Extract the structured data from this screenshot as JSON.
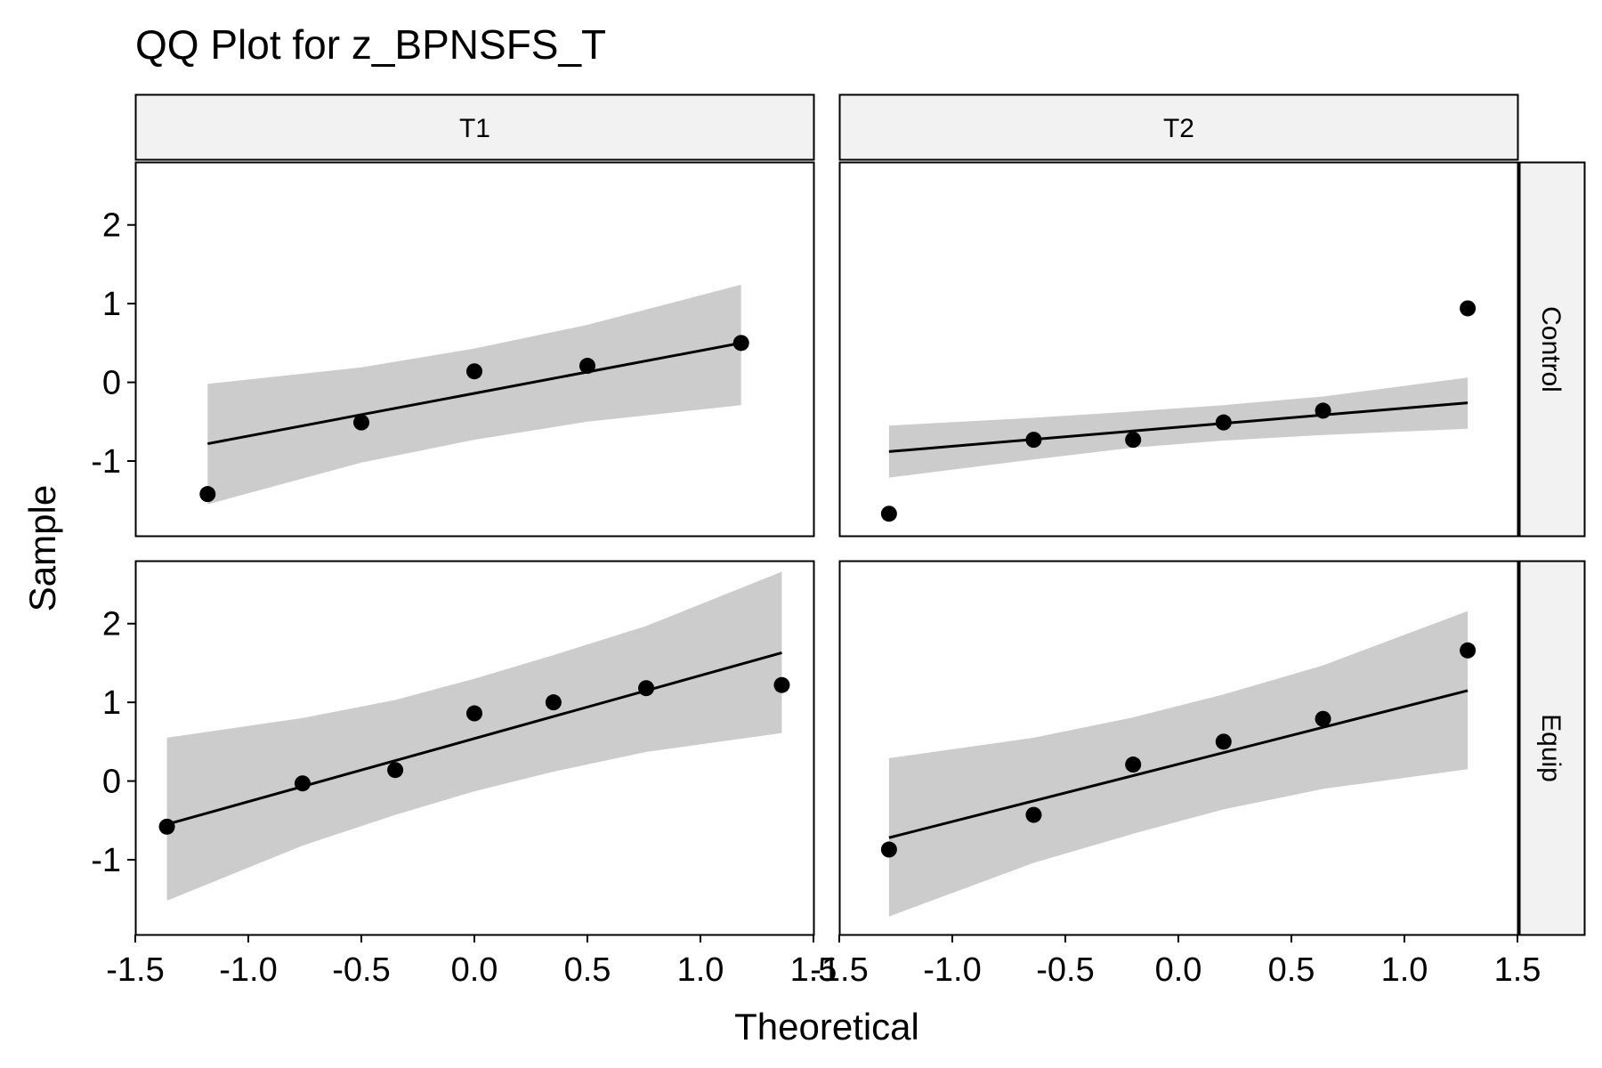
{
  "chart_data": {
    "type": "scatter",
    "title": "QQ Plot for z_BPNSFS_T",
    "xlabel": "Theoretical",
    "ylabel": "Sample",
    "xlim": [
      -1.5,
      1.5
    ],
    "ylim": [
      -1.95,
      2.8
    ],
    "x_ticks": [
      -1.5,
      -1.0,
      -0.5,
      0.0,
      0.5,
      1.0,
      1.5
    ],
    "x_tick_labels": [
      "-1.5",
      "-1.0",
      "-0.5",
      "0.0",
      "0.5",
      "1.0",
      "1.5"
    ],
    "y_ticks": [
      -1,
      0,
      1,
      2
    ],
    "y_tick_labels": [
      "-1",
      "0",
      "1",
      "2"
    ],
    "col_facets": [
      "T1",
      "T2"
    ],
    "row_facets": [
      "Control",
      "Equip"
    ],
    "colors": {
      "point": "#000000",
      "line": "#000000",
      "band": "#cccccc",
      "strip_fill": "#f2f2f2",
      "border": "#000000"
    },
    "panels": [
      {
        "row": "Control",
        "col": "T1",
        "points": [
          [
            -1.18,
            -1.42
          ],
          [
            -0.5,
            -0.51
          ],
          [
            0.0,
            0.14
          ],
          [
            0.5,
            0.21
          ],
          [
            1.18,
            0.5
          ]
        ],
        "line": [
          [
            -1.18,
            -0.78
          ],
          [
            1.18,
            0.5
          ]
        ],
        "band_upper": [
          [
            -1.18,
            -0.02
          ],
          [
            -0.5,
            0.19
          ],
          [
            0.0,
            0.43
          ],
          [
            0.5,
            0.73
          ],
          [
            1.18,
            1.24
          ]
        ],
        "band_lower": [
          [
            -1.18,
            -1.55
          ],
          [
            -0.5,
            -1.02
          ],
          [
            0.0,
            -0.73
          ],
          [
            0.5,
            -0.5
          ],
          [
            1.18,
            -0.29
          ]
        ]
      },
      {
        "row": "Control",
        "col": "T2",
        "points": [
          [
            -1.28,
            -1.67
          ],
          [
            -0.64,
            -0.73
          ],
          [
            -0.2,
            -0.73
          ],
          [
            0.2,
            -0.51
          ],
          [
            0.64,
            -0.36
          ],
          [
            1.28,
            0.94
          ]
        ],
        "line": [
          [
            -1.28,
            -0.88
          ],
          [
            1.28,
            -0.26
          ]
        ],
        "band_upper": [
          [
            -1.28,
            -0.55
          ],
          [
            -0.64,
            -0.45
          ],
          [
            -0.2,
            -0.37
          ],
          [
            0.2,
            -0.29
          ],
          [
            0.64,
            -0.18
          ],
          [
            1.28,
            0.06
          ]
        ],
        "band_lower": [
          [
            -1.28,
            -1.21
          ],
          [
            -0.64,
            -0.98
          ],
          [
            -0.2,
            -0.83
          ],
          [
            0.2,
            -0.74
          ],
          [
            0.64,
            -0.67
          ],
          [
            1.28,
            -0.59
          ]
        ]
      },
      {
        "row": "Equip",
        "col": "T1",
        "points": [
          [
            -1.36,
            -0.58
          ],
          [
            -0.76,
            -0.03
          ],
          [
            -0.35,
            0.14
          ],
          [
            0.0,
            0.86
          ],
          [
            0.35,
            1.0
          ],
          [
            0.76,
            1.18
          ],
          [
            1.36,
            1.22
          ]
        ],
        "line": [
          [
            -1.36,
            -0.55
          ],
          [
            1.36,
            1.63
          ]
        ],
        "band_upper": [
          [
            -1.36,
            0.55
          ],
          [
            -0.76,
            0.8
          ],
          [
            -0.35,
            1.03
          ],
          [
            0.0,
            1.3
          ],
          [
            0.35,
            1.6
          ],
          [
            0.76,
            1.97
          ],
          [
            1.36,
            2.66
          ]
        ],
        "band_lower": [
          [
            -1.36,
            -1.52
          ],
          [
            -0.76,
            -0.82
          ],
          [
            -0.35,
            -0.43
          ],
          [
            0.0,
            -0.13
          ],
          [
            0.35,
            0.12
          ],
          [
            0.76,
            0.37
          ],
          [
            1.36,
            0.61
          ]
        ]
      },
      {
        "row": "Equip",
        "col": "T2",
        "points": [
          [
            -1.28,
            -0.87
          ],
          [
            -0.64,
            -0.43
          ],
          [
            -0.2,
            0.21
          ],
          [
            0.2,
            0.5
          ],
          [
            0.64,
            0.79
          ],
          [
            1.28,
            1.66
          ]
        ],
        "line": [
          [
            -1.28,
            -0.72
          ],
          [
            1.28,
            1.15
          ]
        ],
        "band_upper": [
          [
            -1.28,
            0.29
          ],
          [
            -0.64,
            0.55
          ],
          [
            -0.2,
            0.81
          ],
          [
            0.2,
            1.1
          ],
          [
            0.64,
            1.47
          ],
          [
            1.28,
            2.16
          ]
        ],
        "band_lower": [
          [
            -1.28,
            -1.72
          ],
          [
            -0.64,
            -1.04
          ],
          [
            -0.2,
            -0.67
          ],
          [
            0.2,
            -0.36
          ],
          [
            0.64,
            -0.1
          ],
          [
            1.28,
            0.15
          ]
        ]
      }
    ]
  }
}
